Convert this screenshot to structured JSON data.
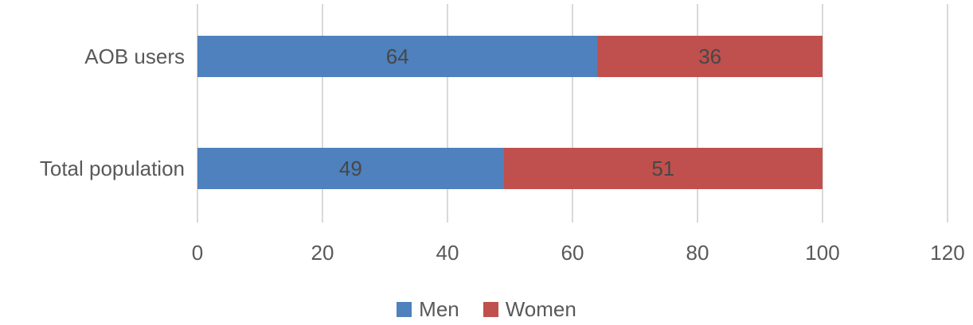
{
  "chart_data": {
    "type": "bar",
    "orientation": "horizontal",
    "stacked": true,
    "title": "",
    "categories": [
      "AOB users",
      "Total population"
    ],
    "series": [
      {
        "name": "Men",
        "color": "#4E81BD",
        "values": [
          64,
          49
        ]
      },
      {
        "name": "Women",
        "color": "#C0504D",
        "values": [
          36,
          51
        ]
      }
    ],
    "xlim": [
      0,
      120
    ],
    "x_ticks": [
      "0",
      "20",
      "40",
      "60",
      "80",
      "100",
      "120"
    ],
    "grid": true,
    "legend_position": "bottom"
  },
  "colors": {
    "men": "#4E81BD",
    "women": "#C0504D",
    "gridline": "#D9D9D9",
    "axis_text": "#595959",
    "data_label": "#474747",
    "background": "#FFFFFF"
  }
}
